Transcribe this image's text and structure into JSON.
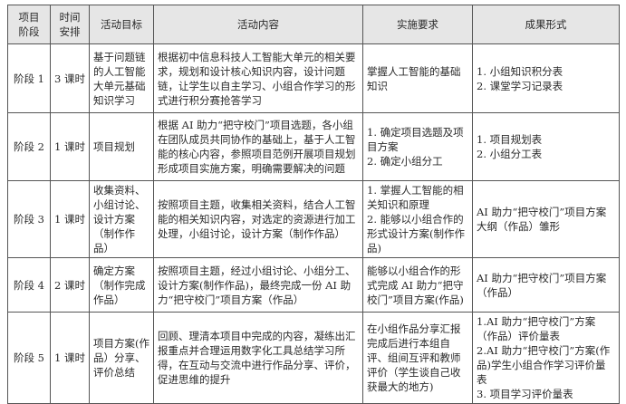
{
  "headers": [
    "项目阶段",
    "时间安排",
    "活动目标",
    "活动内容",
    "实施要求",
    "成果形式"
  ],
  "rows": [
    {
      "stage": "阶段 1",
      "time": "3 课时",
      "goal": "基于问题链的人工智能大单元基础知识学习",
      "content": "根据初中信息科技人工智能大单元的相关要求，规划和设计核心知识内容，设计问题链，让学生以自主学习、小组合作学习的形式进行积分赛抢答学习",
      "requirements": [
        "掌握人工智能的基础知识"
      ],
      "outcomes": [
        "1. 小组知识积分表",
        "2. 课堂学习记录表"
      ]
    },
    {
      "stage": "阶段 2",
      "time": "1 课时",
      "goal": "项目规划",
      "content": "根据 AI 助力“把守校门”项目选题，各小组在团队成员共同协作的基础上，基于人工智能的核心内容，参照项目范例开展项目规划形成项目实施方案，明确需要解决的问题",
      "requirements": [
        "1. 确定项目选题及项目方案",
        "2. 确定小组分工"
      ],
      "outcomes": [
        "1. 项目规划表",
        "2. 小组分工表"
      ]
    },
    {
      "stage": "阶段 3",
      "time": "1 课时",
      "goal": "收集资料、小组讨论、设计方案（制作作品）",
      "content": "按照项目主题，收集相关资料，结合人工智能的相关知识内容，对选定的资源进行加工处理，小组讨论，设计方案（制作作品）",
      "requirements": [
        "1. 掌握人工智能的相关知识和原理",
        "2. 能够以小组合作的形式设计方案(制作作品)"
      ],
      "outcomes": [
        "AI 助力“把守校门”项目方案大纲（作品）雏形"
      ]
    },
    {
      "stage": "阶段 4",
      "time": "2 课时",
      "goal": "确定方案（制作完成作品）",
      "content": "按照项目主题，经过小组讨论、小组分工、设计方案(制作作品)，最终完成一份 AI 助力“把守校门”项目方案（作品）",
      "requirements": [
        "能够以小组合作的形式完成 AI 助力“把守校门”项目方案(作品)"
      ],
      "outcomes": [
        "AI 助力“把守校门”项目方案（作品）"
      ]
    },
    {
      "stage": "阶段 5",
      "time": "1 课时",
      "goal": "项目方案(作品）分享、评价总结",
      "content": "回顾、理清本项目中完成的内容，凝练出汇报重点并合理运用数字化工具总结学习所得，在互动与交流中进行作品分享、评价，促进思维的提升",
      "requirements": [
        "在小组作品分享汇报完成后进行本组自评、组间互评和教师评价（学生谈自己收获最大的地方)"
      ],
      "outcomes": [
        "1.AI 助力“把守校门”方案（作品）评价量表",
        "2.AI 助力“把守校门”方案(作品)学生小组合作学习评价量表",
        "3. 项目学习评价量表"
      ]
    }
  ]
}
